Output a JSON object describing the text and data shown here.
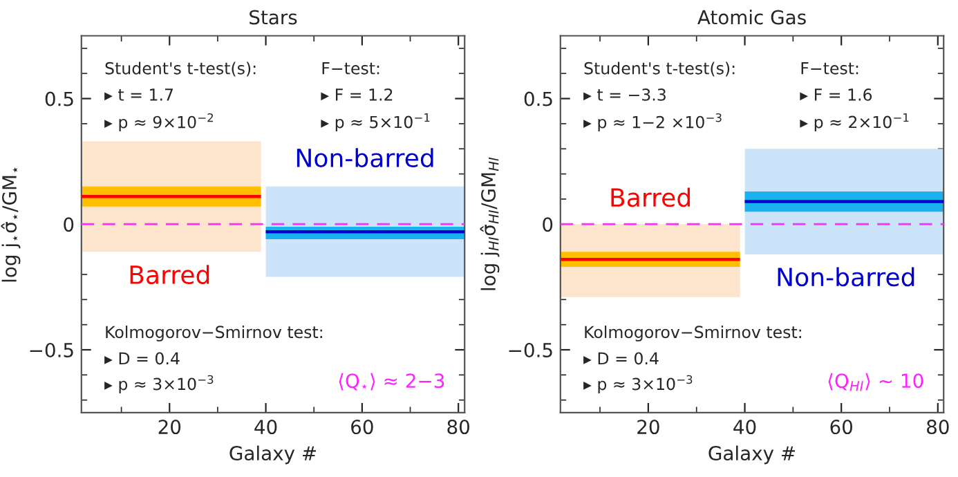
{
  "chart_data": [
    {
      "type": "line",
      "title": "Stars",
      "xlabel": "Galaxy #",
      "ylabel": "log j$_{⋆}$σ̂$_{⋆}$/GM$_{⋆}$",
      "xlim": [
        1.7,
        81.3
      ],
      "ylim": [
        -0.75,
        0.75
      ],
      "xticks": [
        20,
        40,
        60,
        80
      ],
      "yticks": [
        {
          "value": -0.5,
          "label": "−0.5"
        },
        0,
        0.5
      ],
      "legend": false,
      "grid": false,
      "series": [
        {
          "x": [
            1.7,
            39
          ],
          "color": "#fde4cc",
          "values": [
            null,
            null
          ],
          "lower": [
            -0.11,
            -0.11
          ],
          "upper": [
            0.33,
            0.33
          ]
        },
        {
          "x": [
            1.7,
            39
          ],
          "color": "#ffbf00",
          "values": [
            null,
            null
          ],
          "lower": [
            0.07,
            0.07
          ],
          "upper": [
            0.15,
            0.15
          ]
        },
        {
          "x": [
            1.7,
            39
          ],
          "name": "Barred",
          "color": "#ff0000",
          "values": [
            0.11,
            0.11
          ]
        },
        {
          "x": [
            40,
            81.3
          ],
          "color": "#cce4fa",
          "values": [
            null,
            null
          ],
          "lower": [
            -0.21,
            -0.21
          ],
          "upper": [
            0.15,
            0.15
          ]
        },
        {
          "x": [
            40,
            81.3
          ],
          "color": "#1ab2ee",
          "values": [
            null,
            null
          ],
          "lower": [
            -0.06,
            -0.06
          ],
          "upper": [
            -0.01,
            -0.01
          ]
        },
        {
          "x": [
            40,
            81.3
          ],
          "name": "Non-barred",
          "color": "#0000cc",
          "values": [
            -0.03,
            -0.03
          ]
        }
      ],
      "ref_lines": [
        {
          "axis": "y",
          "value": 0,
          "color": "#ff33ff",
          "line_style": "dashed"
        }
      ],
      "annotations": [
        "Student's t-test(s):",
        "▸ t = 1.7",
        "▸ p ≈ 9×10$^{−2}$",
        "F−test:",
        "▸ F = 1.2",
        "▸ p ≈ 5×10$^{−1}$",
        "Kolmogorov−Smirnov test:",
        "▸ D = 0.4",
        "▸ p ≈ 3×10$^{−3}$",
        "⟨Q$_{⋆}$⟩ ≈ 2−3"
      ]
    },
    {
      "type": "line",
      "title": "Atomic Gas",
      "xlabel": "Galaxy #",
      "ylabel": "log j$_{HI}$σ̂$_{HI}$/GM$_{HI}$",
      "xlim": [
        1.8,
        81.2
      ],
      "ylim": [
        -0.75,
        0.75
      ],
      "xticks": [
        20,
        40,
        60,
        80
      ],
      "yticks": [
        {
          "value": -0.5,
          "label": "−0.5"
        },
        0,
        0.5
      ],
      "legend": false,
      "grid": false,
      "series": [
        {
          "x": [
            1.8,
            39
          ],
          "color": "#fde4cc",
          "values": [
            null,
            null
          ],
          "lower": [
            -0.29,
            -0.29
          ],
          "upper": [
            0.0,
            0.0
          ]
        },
        {
          "x": [
            1.8,
            39
          ],
          "color": "#ffbf00",
          "values": [
            null,
            null
          ],
          "lower": [
            -0.17,
            -0.17
          ],
          "upper": [
            -0.11,
            -0.11
          ]
        },
        {
          "x": [
            1.8,
            39
          ],
          "name": "Barred",
          "color": "#ff0000",
          "values": [
            -0.14,
            -0.14
          ]
        },
        {
          "x": [
            40,
            81.2
          ],
          "color": "#cce4fa",
          "values": [
            null,
            null
          ],
          "lower": [
            -0.12,
            -0.12
          ],
          "upper": [
            0.3,
            0.3
          ]
        },
        {
          "x": [
            40,
            81.2
          ],
          "color": "#1ab2ee",
          "values": [
            null,
            null
          ],
          "lower": [
            0.05,
            0.05
          ],
          "upper": [
            0.13,
            0.13
          ]
        },
        {
          "x": [
            40,
            81.2
          ],
          "name": "Non-barred",
          "color": "#0000cc",
          "values": [
            0.09,
            0.09
          ]
        }
      ],
      "ref_lines": [
        {
          "axis": "y",
          "value": 0,
          "color": "#ff33ff",
          "line_style": "dashed"
        }
      ],
      "annotations": [
        "Student's t-test(s):",
        "▸ t = −3.3",
        "▸ p ≈ 1−2 ×10$^{−3}$",
        "F−test:",
        "▸ F = 1.6",
        "▸ p ≈ 2×10$^{−1}$",
        "Kolmogorov−Smirnov test:",
        "▸ D = 0.4",
        "▸ p ≈ 3×10$^{−3}$",
        "⟨Q$_{HI}$⟩ ∼ 10"
      ]
    }
  ]
}
